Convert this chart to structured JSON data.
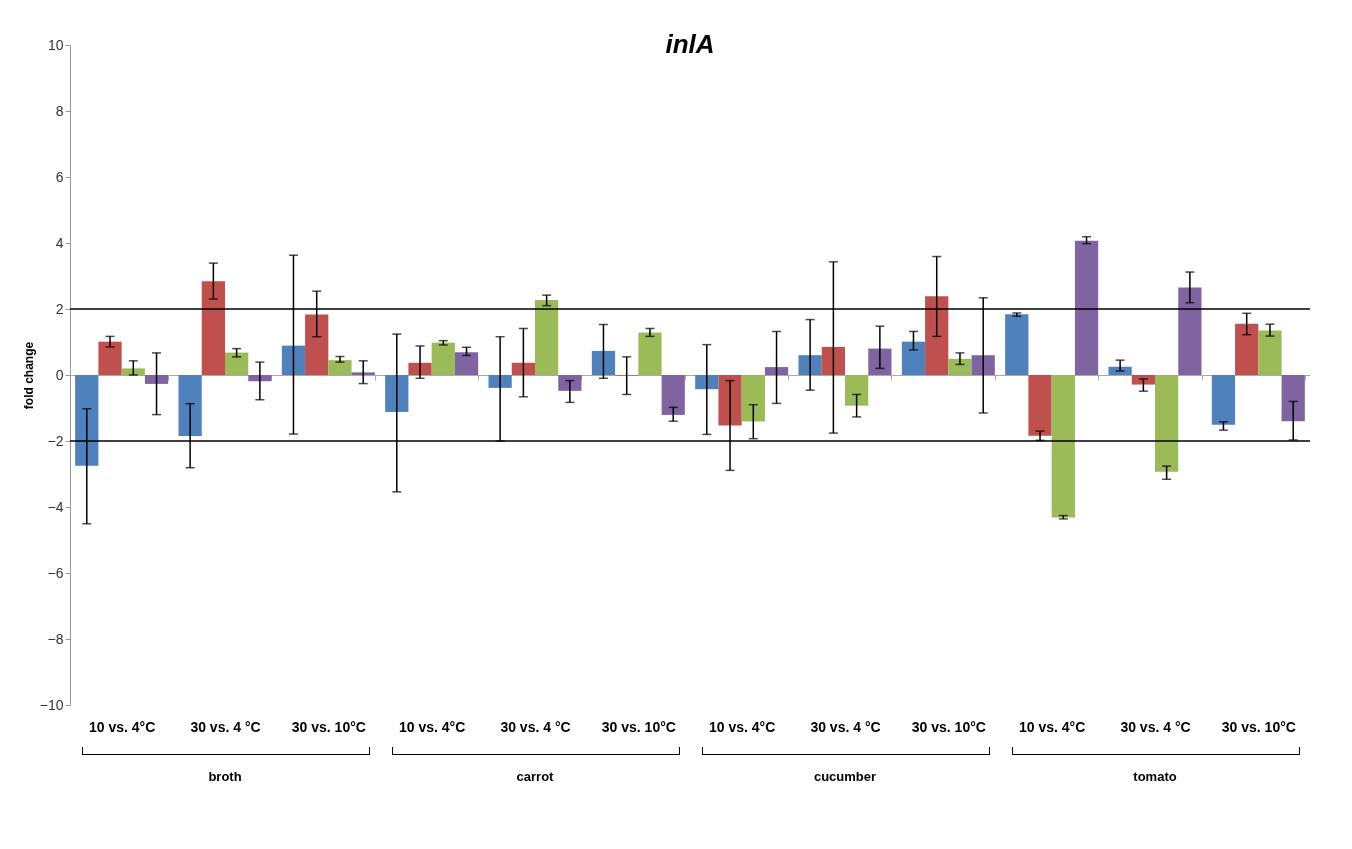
{
  "chart_data": {
    "type": "bar",
    "title": "inlA",
    "ylabel": "fold change",
    "categories": [
      "10 vs. 4°C",
      "30 vs. 4 °C",
      "30 vs. 10°C",
      "10 vs. 4°C",
      "30 vs. 4 °C",
      "30 vs. 10°C",
      "10 vs. 4°C",
      "30 vs. 4 °C",
      "30 vs. 10°C",
      "10 vs. 4°C",
      "30 vs. 4 °C",
      "30 vs. 10°C"
    ],
    "series": [
      {
        "color": "#4f81bd",
        "values": [
          -2.75,
          -1.85,
          0.89,
          -1.12,
          -0.39,
          0.73,
          -0.43,
          0.6,
          1.01,
          1.84,
          0.25,
          -1.51
        ],
        "errors": [
          [
            -4.51,
            -1.02
          ],
          [
            -2.81,
            -0.87
          ],
          [
            -1.79,
            3.63
          ],
          [
            -3.54,
            1.24
          ],
          [
            -2.0,
            1.16
          ],
          [
            -0.1,
            1.53
          ],
          [
            -1.8,
            0.92
          ],
          [
            -0.46,
            1.68
          ],
          [
            0.76,
            1.32
          ],
          [
            1.78,
            1.88
          ],
          [
            0.12,
            0.45
          ],
          [
            -1.67,
            -1.42
          ]
        ]
      },
      {
        "color": "#c0504d",
        "values": [
          1.01,
          2.84,
          1.83,
          0.37,
          0.37,
          -0.02,
          -1.53,
          0.85,
          2.39,
          -1.84,
          -0.29,
          1.55
        ],
        "errors": [
          [
            0.85,
            1.17
          ],
          [
            2.3,
            3.39
          ],
          [
            1.16,
            2.54
          ],
          [
            -0.1,
            0.88
          ],
          [
            -0.66,
            1.41
          ],
          [
            -0.59,
            0.55
          ],
          [
            -2.89,
            -0.17
          ],
          [
            -1.76,
            3.43
          ],
          [
            1.17,
            3.59
          ],
          [
            -1.98,
            -1.7
          ],
          [
            -0.49,
            -0.12
          ],
          [
            1.22,
            1.87
          ]
        ]
      },
      {
        "color": "#9bbb59",
        "values": [
          0.2,
          0.68,
          0.45,
          0.98,
          2.27,
          1.29,
          -1.41,
          -0.93,
          0.49,
          -4.32,
          -2.93,
          1.35
        ],
        "errors": [
          [
            0,
            0.43
          ],
          [
            0.55,
            0.8
          ],
          [
            0.39,
            0.56
          ],
          [
            0.91,
            1.04
          ],
          [
            2.1,
            2.42
          ],
          [
            1.17,
            1.41
          ],
          [
            -1.93,
            -0.9
          ],
          [
            -1.27,
            -0.59
          ],
          [
            0.32,
            0.67
          ],
          [
            -4.36,
            -4.26
          ],
          [
            -3.16,
            -2.76
          ],
          [
            1.18,
            1.54
          ]
        ]
      },
      {
        "color": "#8064a2",
        "values": [
          -0.27,
          -0.19,
          0.08,
          0.69,
          -0.48,
          -1.21,
          0.24,
          0.8,
          0.6,
          4.07,
          2.65,
          -1.4
        ],
        "errors": [
          [
            -1.2,
            0.67
          ],
          [
            -0.75,
            0.39
          ],
          [
            -0.26,
            0.43
          ],
          [
            0.59,
            0.84
          ],
          [
            -0.83,
            -0.17
          ],
          [
            -1.4,
            -0.98
          ],
          [
            -0.86,
            1.32
          ],
          [
            0.2,
            1.48
          ],
          [
            -1.15,
            2.34
          ],
          [
            3.98,
            4.19
          ],
          [
            2.19,
            3.12
          ],
          [
            -1.97,
            -0.8
          ]
        ]
      }
    ],
    "ylim": [
      -10,
      10
    ],
    "yticks": [
      -10,
      -8,
      -6,
      -4,
      -2,
      0,
      2,
      4,
      6,
      8,
      10
    ],
    "grid": false,
    "legend": false,
    "ref_lines": [
      {
        "axis": "y",
        "value": 2,
        "color": "#000000"
      },
      {
        "axis": "y",
        "value": -2,
        "color": "#000000"
      }
    ],
    "annotations": [
      "broth",
      "carrot",
      "cucumber",
      "tomato"
    ]
  }
}
